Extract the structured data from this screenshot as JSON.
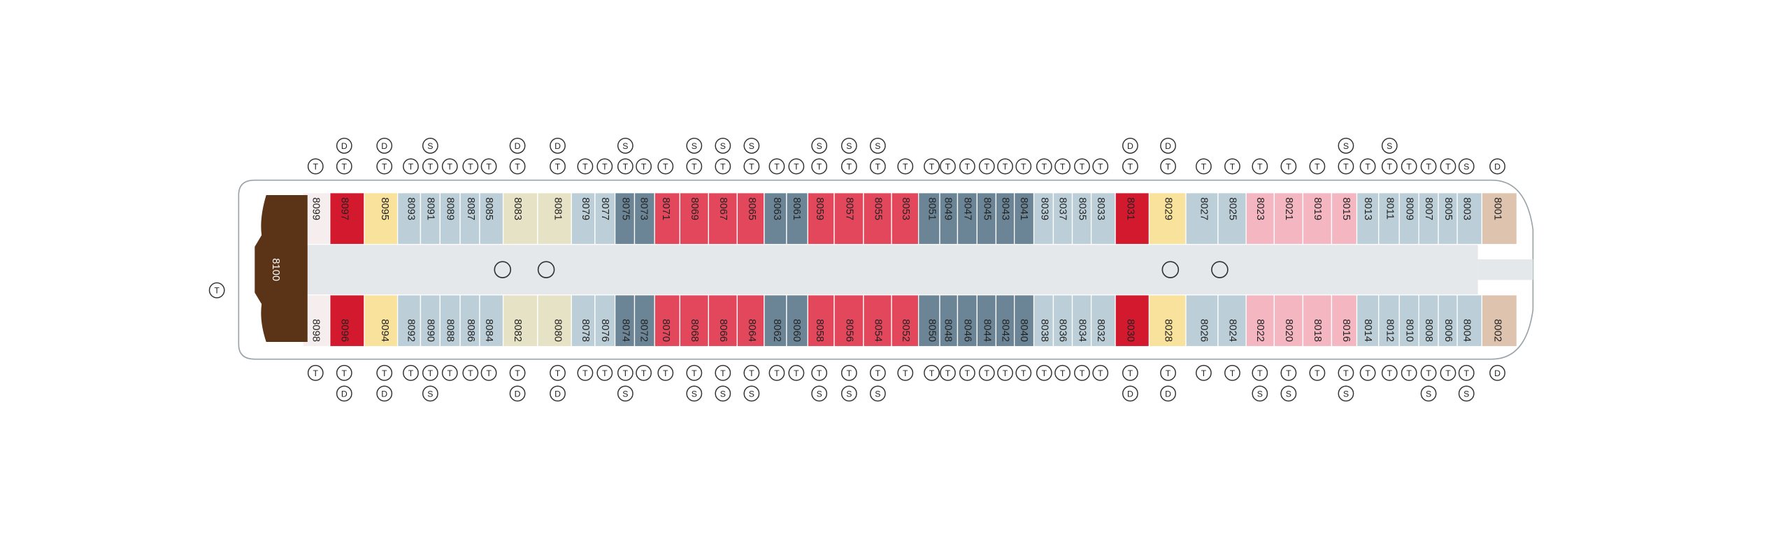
{
  "stern_cabin": {
    "number": "8100",
    "color": "#5b3317"
  },
  "stern_icons": [
    "T"
  ],
  "cabins_top": [
    {
      "number": "8099",
      "color": "#f6eeee",
      "icons": [
        "T"
      ]
    },
    {
      "number": "8097",
      "color": "#d3192d",
      "icons": [
        "T",
        "D"
      ]
    },
    {
      "number": "8095",
      "color": "#f8e29c",
      "icons": [
        "T",
        "D"
      ]
    },
    {
      "number": "8093",
      "color": "#bccfd8",
      "icons": [
        "T"
      ]
    },
    {
      "number": "8091",
      "color": "#bccfd8",
      "icons": [
        "T",
        "S"
      ]
    },
    {
      "number": "8089",
      "color": "#bccfd8",
      "icons": [
        "T"
      ]
    },
    {
      "number": "8087",
      "color": "#bccfd8",
      "icons": [
        "T"
      ]
    },
    {
      "number": "8085",
      "color": "#bccfd8",
      "icons": [
        "T"
      ]
    },
    {
      "number": "8083",
      "color": "#e6e2c6",
      "icons": [
        "T",
        "D"
      ]
    },
    {
      "number": "8081",
      "color": "#e6e2c6",
      "icons": [
        "T",
        "D"
      ]
    },
    {
      "number": "8079",
      "color": "#bccfd8",
      "icons": [
        "T"
      ]
    },
    {
      "number": "8077",
      "color": "#bccfd8",
      "icons": [
        "T"
      ]
    },
    {
      "number": "8075",
      "color": "#6b8596",
      "icons": [
        "T",
        "S"
      ]
    },
    {
      "number": "8073",
      "color": "#6b8596",
      "icons": [
        "T"
      ]
    },
    {
      "number": "8071",
      "color": "#e3475c",
      "icons": [
        "T"
      ]
    },
    {
      "number": "8069",
      "color": "#e3475c",
      "icons": [
        "T",
        "S"
      ]
    },
    {
      "number": "8067",
      "color": "#e3475c",
      "icons": [
        "T",
        "S"
      ]
    },
    {
      "number": "8065",
      "color": "#e3475c",
      "icons": [
        "T",
        "S"
      ]
    },
    {
      "number": "8063",
      "color": "#6b8596",
      "icons": [
        "T"
      ]
    },
    {
      "number": "8061",
      "color": "#6b8596",
      "icons": [
        "T"
      ]
    },
    {
      "number": "8059",
      "color": "#e3475c",
      "icons": [
        "T",
        "S"
      ]
    },
    {
      "number": "8057",
      "color": "#e3475c",
      "icons": [
        "T",
        "S"
      ]
    },
    {
      "number": "8055",
      "color": "#e3475c",
      "icons": [
        "T",
        "S"
      ]
    },
    {
      "number": "8053",
      "color": "#e3475c",
      "icons": [
        "T"
      ]
    },
    {
      "number": "8051",
      "color": "#6b8596",
      "icons": [
        "T"
      ]
    },
    {
      "number": "8049",
      "color": "#6b8596",
      "icons": [
        "T"
      ]
    },
    {
      "number": "8047",
      "color": "#6b8596",
      "icons": [
        "T"
      ]
    },
    {
      "number": "8045",
      "color": "#6b8596",
      "icons": [
        "T"
      ]
    },
    {
      "number": "8043",
      "color": "#6b8596",
      "icons": [
        "T"
      ]
    },
    {
      "number": "8041",
      "color": "#6b8596",
      "icons": [
        "T"
      ]
    },
    {
      "number": "8039",
      "color": "#bccfd8",
      "icons": [
        "T"
      ]
    },
    {
      "number": "8037",
      "color": "#bccfd8",
      "icons": [
        "T"
      ]
    },
    {
      "number": "8035",
      "color": "#bccfd8",
      "icons": [
        "T"
      ]
    },
    {
      "number": "8033",
      "color": "#bccfd8",
      "icons": [
        "T"
      ]
    },
    {
      "number": "8031",
      "color": "#d3192d",
      "icons": [
        "T",
        "D"
      ]
    },
    {
      "number": "8029",
      "color": "#f8e29c",
      "icons": [
        "T",
        "D"
      ]
    },
    {
      "number": "8027",
      "color": "#bccfd8",
      "icons": [
        "T"
      ]
    },
    {
      "number": "8025",
      "color": "#bccfd8",
      "icons": [
        "T"
      ]
    },
    {
      "number": "8023",
      "color": "#f4b7c2",
      "icons": [
        "T"
      ]
    },
    {
      "number": "8021",
      "color": "#f4b7c2",
      "icons": [
        "T"
      ]
    },
    {
      "number": "8019",
      "color": "#f4b7c2",
      "icons": [
        "T"
      ]
    },
    {
      "number": "8015",
      "color": "#f4b7c2",
      "icons": [
        "T",
        "S"
      ]
    },
    {
      "number": "8013",
      "color": "#bccfd8",
      "icons": [
        "T"
      ]
    },
    {
      "number": "8011",
      "color": "#bccfd8",
      "icons": [
        "T",
        "S"
      ]
    },
    {
      "number": "8009",
      "color": "#bccfd8",
      "icons": [
        "T"
      ]
    },
    {
      "number": "8007",
      "color": "#bccfd8",
      "icons": [
        "T"
      ]
    },
    {
      "number": "8005",
      "color": "#bccfd8",
      "icons": [
        "T"
      ]
    },
    {
      "number": "8003",
      "color": "#bccfd8",
      "icons": [
        "S"
      ]
    },
    {
      "number": "8001",
      "color": "#dec3ae",
      "icons": [
        "D"
      ]
    }
  ],
  "cabins_bottom": [
    {
      "number": "8098",
      "color": "#f6eeee",
      "icons": [
        "T"
      ]
    },
    {
      "number": "8096",
      "color": "#d3192d",
      "icons": [
        "T",
        "D"
      ]
    },
    {
      "number": "8094",
      "color": "#f8e29c",
      "icons": [
        "T",
        "D"
      ]
    },
    {
      "number": "8092",
      "color": "#bccfd8",
      "icons": [
        "T"
      ]
    },
    {
      "number": "8090",
      "color": "#bccfd8",
      "icons": [
        "T",
        "S"
      ]
    },
    {
      "number": "8088",
      "color": "#bccfd8",
      "icons": [
        "T"
      ]
    },
    {
      "number": "8086",
      "color": "#bccfd8",
      "icons": [
        "T"
      ]
    },
    {
      "number": "8084",
      "color": "#bccfd8",
      "icons": [
        "T"
      ]
    },
    {
      "number": "8082",
      "color": "#e6e2c6",
      "icons": [
        "T",
        "D"
      ]
    },
    {
      "number": "8080",
      "color": "#e6e2c6",
      "icons": [
        "T",
        "D"
      ]
    },
    {
      "number": "8078",
      "color": "#bccfd8",
      "icons": [
        "T"
      ]
    },
    {
      "number": "8076",
      "color": "#bccfd8",
      "icons": [
        "T"
      ]
    },
    {
      "number": "8074",
      "color": "#6b8596",
      "icons": [
        "T",
        "S"
      ]
    },
    {
      "number": "8072",
      "color": "#6b8596",
      "icons": [
        "T"
      ]
    },
    {
      "number": "8070",
      "color": "#e3475c",
      "icons": [
        "T"
      ]
    },
    {
      "number": "8068",
      "color": "#e3475c",
      "icons": [
        "T",
        "S"
      ]
    },
    {
      "number": "8066",
      "color": "#e3475c",
      "icons": [
        "T",
        "S"
      ]
    },
    {
      "number": "8064",
      "color": "#e3475c",
      "icons": [
        "T",
        "S"
      ]
    },
    {
      "number": "8062",
      "color": "#6b8596",
      "icons": [
        "T"
      ]
    },
    {
      "number": "8060",
      "color": "#6b8596",
      "icons": [
        "T"
      ]
    },
    {
      "number": "8058",
      "color": "#e3475c",
      "icons": [
        "T",
        "S"
      ]
    },
    {
      "number": "8056",
      "color": "#e3475c",
      "icons": [
        "T",
        "S"
      ]
    },
    {
      "number": "8054",
      "color": "#e3475c",
      "icons": [
        "T",
        "S"
      ]
    },
    {
      "number": "8052",
      "color": "#e3475c",
      "icons": [
        "T"
      ]
    },
    {
      "number": "8050",
      "color": "#6b8596",
      "icons": [
        "T"
      ]
    },
    {
      "number": "8048",
      "color": "#6b8596",
      "icons": [
        "T"
      ]
    },
    {
      "number": "8046",
      "color": "#6b8596",
      "icons": [
        "T"
      ]
    },
    {
      "number": "8044",
      "color": "#6b8596",
      "icons": [
        "T"
      ]
    },
    {
      "number": "8042",
      "color": "#6b8596",
      "icons": [
        "T"
      ]
    },
    {
      "number": "8040",
      "color": "#6b8596",
      "icons": [
        "T"
      ]
    },
    {
      "number": "8038",
      "color": "#bccfd8",
      "icons": [
        "T"
      ]
    },
    {
      "number": "8036",
      "color": "#bccfd8",
      "icons": [
        "T"
      ]
    },
    {
      "number": "8034",
      "color": "#bccfd8",
      "icons": [
        "T"
      ]
    },
    {
      "number": "8032",
      "color": "#bccfd8",
      "icons": [
        "T"
      ]
    },
    {
      "number": "8030",
      "color": "#d3192d",
      "icons": [
        "T",
        "D"
      ]
    },
    {
      "number": "8028",
      "color": "#f8e29c",
      "icons": [
        "T",
        "D"
      ]
    },
    {
      "number": "8026",
      "color": "#bccfd8",
      "icons": [
        "T"
      ]
    },
    {
      "number": "8024",
      "color": "#bccfd8",
      "icons": [
        "T"
      ]
    },
    {
      "number": "8022",
      "color": "#f4b7c2",
      "icons": [
        "T",
        "S"
      ]
    },
    {
      "number": "8020",
      "color": "#f4b7c2",
      "icons": [
        "T",
        "S"
      ]
    },
    {
      "number": "8018",
      "color": "#f4b7c2",
      "icons": [
        "T"
      ]
    },
    {
      "number": "8016",
      "color": "#f4b7c2",
      "icons": [
        "T",
        "S"
      ]
    },
    {
      "number": "8014",
      "color": "#bccfd8",
      "icons": [
        "T"
      ]
    },
    {
      "number": "8012",
      "color": "#bccfd8",
      "icons": [
        "T"
      ]
    },
    {
      "number": "8010",
      "color": "#bccfd8",
      "icons": [
        "T"
      ]
    },
    {
      "number": "8008",
      "color": "#bccfd8",
      "icons": [
        "T",
        "S"
      ]
    },
    {
      "number": "8006",
      "color": "#bccfd8",
      "icons": [
        "T"
      ]
    },
    {
      "number": "8004",
      "color": "#bccfd8",
      "icons": [
        "T",
        "S"
      ]
    },
    {
      "number": "8002",
      "color": "#dec3ae",
      "icons": [
        "D"
      ]
    }
  ]
}
